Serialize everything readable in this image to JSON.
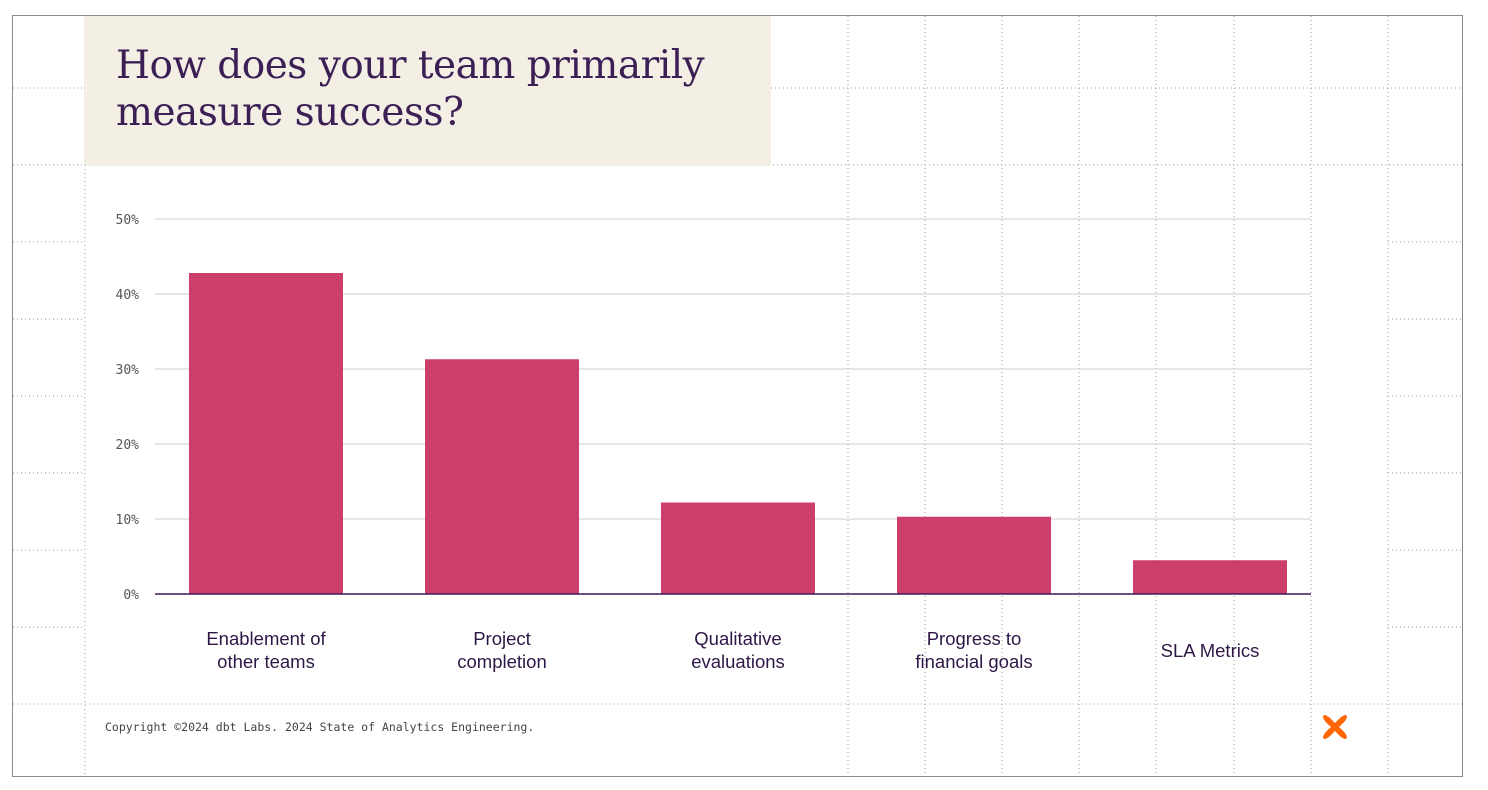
{
  "slide": {
    "title": "How does your team primarily measure success?",
    "copyright": "Copyright ©2024 dbt Labs. 2024 State of Analytics Engineering."
  },
  "logo": {
    "icon": "dbt-logo-icon",
    "color": "#fe6703"
  },
  "colors": {
    "bar": "#cc3f6b",
    "title": "#3b1f55",
    "title_bg": "#f3efe4",
    "gridline": "#cfcfcf",
    "axis": "#3b1f55",
    "tick_text": "#555555",
    "category_text": "#2e1747"
  },
  "chart_data": {
    "type": "bar",
    "title": "How does your team primarily measure success?",
    "xlabel": "",
    "ylabel": "",
    "ylim": [
      0,
      50
    ],
    "yticks": [
      0,
      10,
      20,
      30,
      40,
      50
    ],
    "ytick_labels": [
      "0%",
      "10%",
      "20%",
      "30%",
      "40%",
      "50%"
    ],
    "grid": true,
    "categories": [
      [
        "Enablement of",
        "other teams"
      ],
      [
        "Project",
        "completion"
      ],
      [
        "Qualitative",
        "evaluations"
      ],
      [
        "Progress to",
        "financial goals"
      ],
      [
        "SLA Metrics"
      ]
    ],
    "values": [
      42.8,
      31.3,
      12.2,
      10.3,
      4.5
    ]
  }
}
